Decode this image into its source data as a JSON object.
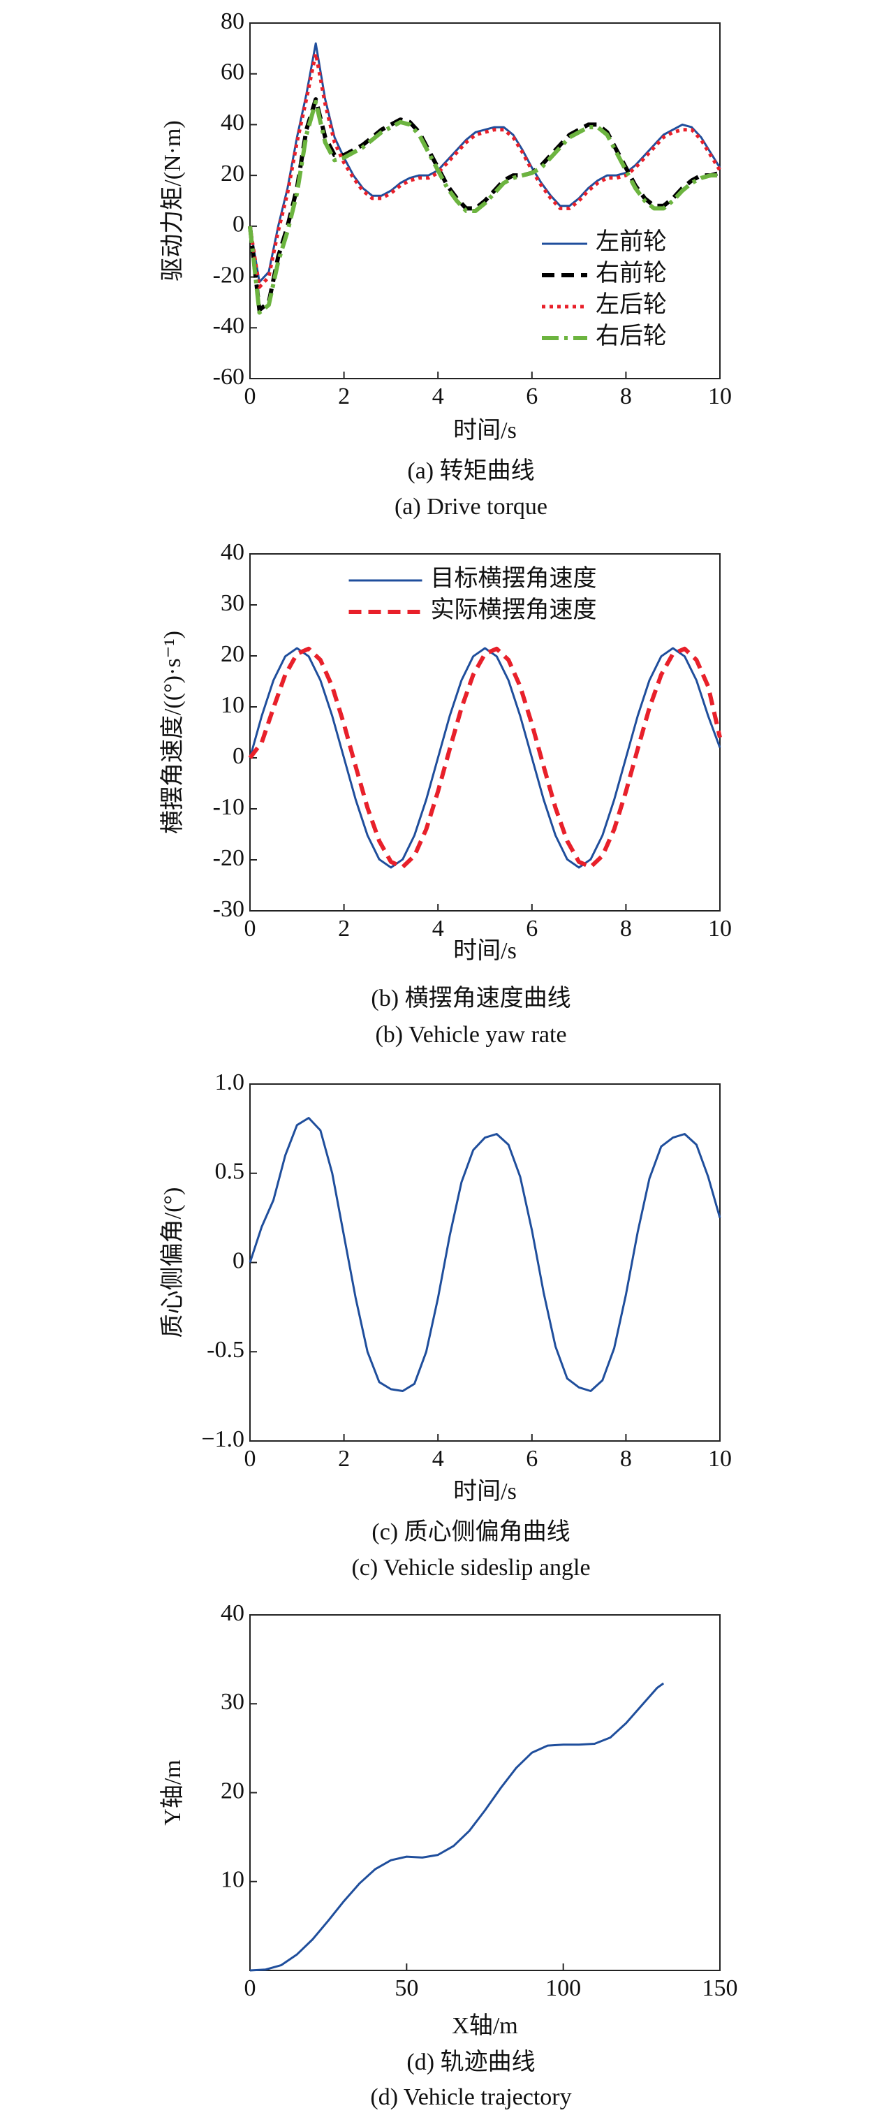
{
  "chart_data": [
    {
      "type": "line",
      "title": "(a) 转矩曲线",
      "subtitle": "(a) Drive torque",
      "xlabel": "时间/s",
      "ylabel": "驱动力矩/(N·m)",
      "x": [
        0,
        0.2,
        0.4,
        0.6,
        0.8,
        1.0,
        1.2,
        1.4,
        1.6,
        1.8,
        2.0,
        2.2,
        2.4,
        2.6,
        2.8,
        3.0,
        3.2,
        3.4,
        3.6,
        3.8,
        4.0,
        4.2,
        4.4,
        4.6,
        4.8,
        5.0,
        5.2,
        5.4,
        5.6,
        5.8,
        6.0,
        6.2,
        6.4,
        6.6,
        6.8,
        7.0,
        7.2,
        7.4,
        7.6,
        7.8,
        8.0,
        8.2,
        8.4,
        8.6,
        8.8,
        9.0,
        9.2,
        9.4,
        9.6,
        9.8,
        10
      ],
      "series": [
        {
          "name": "左前轮",
          "color": "#1f4e9c",
          "style": "solid",
          "values": [
            0,
            -22,
            -18,
            0,
            15,
            35,
            52,
            72,
            50,
            35,
            27,
            20,
            15,
            12,
            12,
            14,
            17,
            19,
            20,
            20,
            22,
            26,
            30,
            34,
            37,
            38,
            39,
            39,
            36,
            30,
            23,
            17,
            12,
            8,
            8,
            11,
            15,
            18,
            20,
            20,
            21,
            24,
            28,
            32,
            36,
            38,
            40,
            39,
            35,
            29,
            23
          ]
        },
        {
          "name": "右前轮",
          "color": "#000000",
          "style": "dashed",
          "values": [
            0,
            -33,
            -30,
            -12,
            0,
            15,
            38,
            50,
            35,
            28,
            28,
            30,
            32,
            35,
            38,
            40,
            42,
            41,
            37,
            30,
            23,
            16,
            11,
            7,
            7,
            10,
            14,
            18,
            20,
            20,
            21,
            24,
            28,
            32,
            36,
            38,
            40,
            40,
            37,
            30,
            23,
            16,
            11,
            8,
            8,
            11,
            15,
            18,
            20,
            20,
            21
          ]
        },
        {
          "name": "左后轮",
          "color": "#e8202a",
          "style": "dotted",
          "values": [
            0,
            -24,
            -20,
            -2,
            13,
            33,
            50,
            68,
            48,
            33,
            25,
            19,
            14,
            11,
            11,
            13,
            16,
            18,
            19,
            19,
            21,
            25,
            29,
            33,
            36,
            37,
            38,
            38,
            35,
            29,
            22,
            16,
            11,
            7,
            7,
            10,
            14,
            17,
            19,
            19,
            20,
            23,
            27,
            31,
            35,
            37,
            38,
            38,
            34,
            28,
            22
          ]
        },
        {
          "name": "右后轮",
          "color": "#6cb43f",
          "style": "dashdot",
          "values": [
            0,
            -34,
            -31,
            -14,
            -2,
            13,
            36,
            49,
            33,
            26,
            27,
            29,
            31,
            34,
            37,
            39,
            41,
            40,
            36,
            29,
            22,
            15,
            10,
            6,
            6,
            9,
            13,
            17,
            19,
            20,
            21,
            23,
            27,
            31,
            35,
            37,
            39,
            39,
            36,
            29,
            22,
            15,
            10,
            7,
            7,
            10,
            14,
            17,
            19,
            20,
            20
          ]
        }
      ],
      "xlim": [
        0,
        10
      ],
      "xticks": [
        0,
        2,
        4,
        6,
        8,
        10
      ],
      "ylim": [
        -60,
        80
      ],
      "yticks": [
        -60,
        -40,
        -20,
        0,
        20,
        40,
        60,
        80
      ],
      "legend": "lower right"
    },
    {
      "type": "line",
      "title": "(b) 横摆角速度曲线",
      "subtitle": "(b) Vehicle yaw rate",
      "xlabel": "时间/s",
      "ylabel": "横摆角速度/((°)·s⁻¹)",
      "x": [
        0,
        0.25,
        0.5,
        0.75,
        1,
        1.25,
        1.5,
        1.75,
        2,
        2.25,
        2.5,
        2.75,
        3,
        3.25,
        3.5,
        3.75,
        4,
        4.25,
        4.5,
        4.75,
        5,
        5.25,
        5.5,
        5.75,
        6,
        6.25,
        6.5,
        6.75,
        7,
        7.25,
        7.5,
        7.75,
        8,
        8.25,
        8.5,
        8.75,
        9,
        9.25,
        9.5,
        9.75,
        10
      ],
      "series": [
        {
          "name": "目标横摆角速度",
          "color": "#1f4e9c",
          "style": "solid",
          "values": [
            0,
            8.2,
            15.2,
            19.9,
            21.5,
            19.9,
            15.2,
            8.2,
            0,
            -8.2,
            -15.2,
            -19.9,
            -21.5,
            -19.9,
            -15.2,
            -8.2,
            0,
            8.2,
            15.2,
            19.9,
            21.5,
            19.9,
            15.2,
            8.2,
            0,
            -8.2,
            -15.2,
            -19.9,
            -21.5,
            -19.9,
            -15.2,
            -8.2,
            0,
            8.2,
            15.2,
            19.9,
            21.5,
            19.9,
            15.2,
            8.2,
            2
          ]
        },
        {
          "name": "实际横摆角速度",
          "color": "#e8202a",
          "style": "dashed",
          "values": [
            0,
            3,
            9.8,
            16.3,
            20.4,
            21.4,
            19.2,
            14,
            6.6,
            -1.7,
            -9.8,
            -16.3,
            -20.4,
            -21.4,
            -19.2,
            -14,
            -6.6,
            1.7,
            9.8,
            16.3,
            20.4,
            21.4,
            19.2,
            14,
            6.6,
            -1.7,
            -9.8,
            -16.3,
            -20.4,
            -21.4,
            -19.2,
            -14,
            -6.6,
            1.7,
            9.8,
            16.3,
            20.4,
            21.4,
            19.2,
            14,
            4
          ]
        }
      ],
      "xlim": [
        0,
        10
      ],
      "xticks": [
        0,
        2,
        4,
        6,
        8,
        10
      ],
      "ylim": [
        -30,
        40
      ],
      "yticks": [
        -30,
        -20,
        -10,
        0,
        10,
        20,
        30,
        40
      ],
      "legend": "upper center"
    },
    {
      "type": "line",
      "title": "(c) 质心侧偏角曲线",
      "subtitle": "(c) Vehicle sideslip angle",
      "xlabel": "时间/s",
      "ylabel": "质心侧偏角/(°)",
      "x": [
        0,
        0.25,
        0.5,
        0.75,
        1,
        1.25,
        1.5,
        1.75,
        2,
        2.25,
        2.5,
        2.75,
        3,
        3.25,
        3.5,
        3.75,
        4,
        4.25,
        4.5,
        4.75,
        5,
        5.25,
        5.5,
        5.75,
        6,
        6.25,
        6.5,
        6.75,
        7,
        7.25,
        7.5,
        7.75,
        8,
        8.25,
        8.5,
        8.75,
        9,
        9.25,
        9.5,
        9.75,
        10
      ],
      "values": [
        0,
        0.2,
        0.35,
        0.6,
        0.77,
        0.81,
        0.74,
        0.5,
        0.15,
        -0.2,
        -0.5,
        -0.67,
        -0.71,
        -0.72,
        -0.68,
        -0.5,
        -0.2,
        0.15,
        0.45,
        0.63,
        0.7,
        0.72,
        0.66,
        0.48,
        0.18,
        -0.17,
        -0.47,
        -0.65,
        -0.7,
        -0.72,
        -0.66,
        -0.48,
        -0.18,
        0.17,
        0.47,
        0.65,
        0.7,
        0.72,
        0.66,
        0.48,
        0.25
      ],
      "color": "#1f4e9c",
      "xlim": [
        0,
        10
      ],
      "xticks": [
        0,
        2,
        4,
        6,
        8,
        10
      ],
      "ylim": [
        -1,
        1
      ],
      "yticks": [
        {
          "value": -1,
          "label": "−1.0"
        },
        -0.5,
        0,
        0.5,
        {
          "value": 1,
          "label": "1.0"
        }
      ]
    },
    {
      "type": "line",
      "title": "(d) 轨迹曲线",
      "subtitle": "(d) Vehicle trajectory",
      "xlabel": "X轴/m",
      "ylabel": "Y轴/m",
      "x": [
        0,
        5,
        10,
        15,
        20,
        25,
        30,
        35,
        40,
        45,
        50,
        55,
        60,
        65,
        70,
        75,
        80,
        85,
        90,
        95,
        100,
        105,
        110,
        115,
        120,
        125,
        130,
        132
      ],
      "values": [
        0,
        0.1,
        0.6,
        1.8,
        3.5,
        5.6,
        7.8,
        9.8,
        11.4,
        12.4,
        12.8,
        12.7,
        13.0,
        14.0,
        15.7,
        18.0,
        20.5,
        22.8,
        24.5,
        25.3,
        25.4,
        25.4,
        25.5,
        26.2,
        27.8,
        29.8,
        31.8,
        32.3
      ],
      "color": "#1f4e9c",
      "xlim": [
        0,
        150
      ],
      "xticks": [
        0,
        50,
        100,
        150
      ],
      "ylim": [
        0,
        40
      ],
      "yticks": [
        10,
        20,
        30,
        40
      ]
    }
  ]
}
